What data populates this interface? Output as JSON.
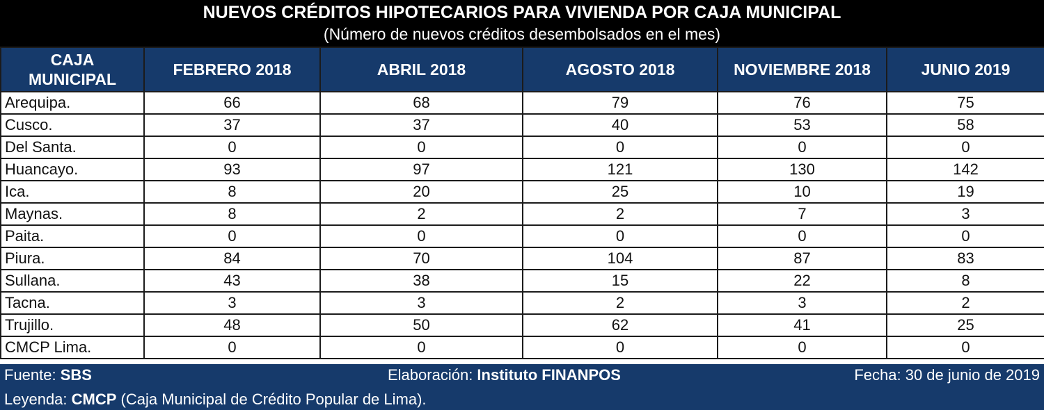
{
  "chart_data": {
    "type": "table",
    "title": "NUEVOS CRÉDITOS HIPOTECARIOS PARA VIVIENDA POR CAJA MUNICIPAL",
    "subtitle": "(Número de nuevos créditos desembolsados en el mes)",
    "row_header": "CAJA MUNICIPAL",
    "columns": [
      "FEBRERO 2018",
      "ABRIL 2018",
      "AGOSTO 2018",
      "NOVIEMBRE 2018",
      "JUNIO 2019"
    ],
    "rows": [
      {
        "name": "Arequipa.",
        "values": [
          66,
          68,
          79,
          76,
          75
        ]
      },
      {
        "name": "Cusco.",
        "values": [
          37,
          37,
          40,
          53,
          58
        ]
      },
      {
        "name": "Del Santa.",
        "values": [
          0,
          0,
          0,
          0,
          0
        ]
      },
      {
        "name": "Huancayo.",
        "values": [
          93,
          97,
          121,
          130,
          142
        ]
      },
      {
        "name": "Ica.",
        "values": [
          8,
          20,
          25,
          10,
          19
        ]
      },
      {
        "name": "Maynas.",
        "values": [
          8,
          2,
          2,
          7,
          3
        ]
      },
      {
        "name": "Paita.",
        "values": [
          0,
          0,
          0,
          0,
          0
        ]
      },
      {
        "name": "Piura.",
        "values": [
          84,
          70,
          104,
          87,
          83
        ]
      },
      {
        "name": "Sullana.",
        "values": [
          43,
          38,
          15,
          22,
          8
        ]
      },
      {
        "name": "Tacna.",
        "values": [
          3,
          3,
          2,
          3,
          2
        ]
      },
      {
        "name": "Trujillo.",
        "values": [
          48,
          50,
          62,
          41,
          25
        ]
      },
      {
        "name": "CMCP Lima.",
        "values": [
          0,
          0,
          0,
          0,
          0
        ]
      }
    ]
  },
  "footer": {
    "source_label": "Fuente: ",
    "source_value": "SBS",
    "elaboration_label": "Elaboración: ",
    "elaboration_value": "Instituto FINANPOS",
    "date": "Fecha: 30 de junio de 2019",
    "legend_label": "Leyenda: ",
    "legend_value": "CMCP",
    "legend_text": " (Caja Municipal de Crédito Popular de Lima)."
  },
  "colors": {
    "header_bg": "#163a6b",
    "title_bg": "#000000",
    "grid_line": "#1b1b1b"
  }
}
